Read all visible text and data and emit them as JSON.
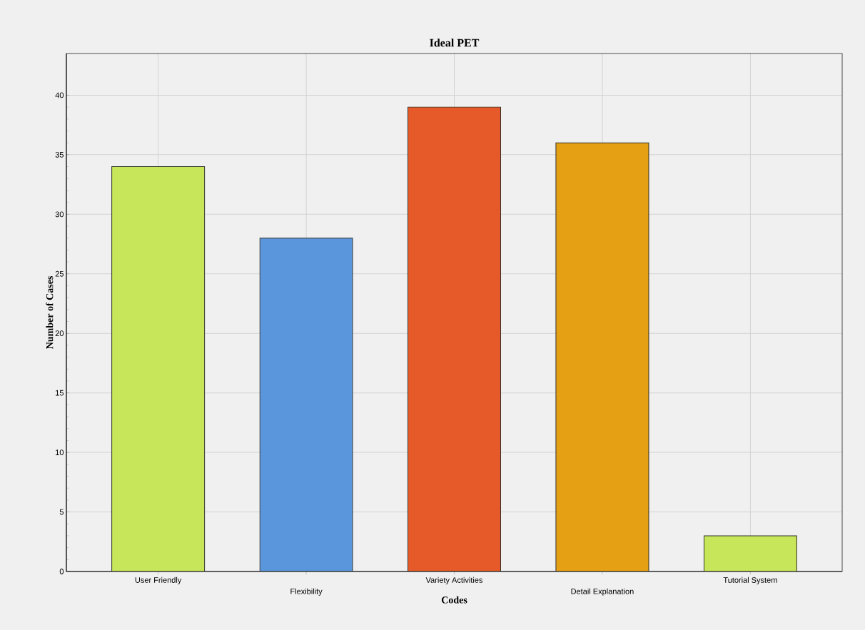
{
  "chart_data": {
    "type": "bar",
    "title": "Ideal PET",
    "xlabel": "Codes",
    "ylabel": "Number of Cases",
    "categories": [
      "User Friendly",
      "Flexibility",
      "Variety Activities",
      "Detail Explanation",
      "Tutorial System"
    ],
    "values": [
      34,
      28,
      39,
      36,
      3
    ],
    "colors": [
      "#c8e65a",
      "#5a96dc",
      "#e55a28",
      "#e6a014",
      "#c8e65a"
    ],
    "ylim": [
      0,
      43.5
    ],
    "yticks": [
      0,
      5,
      10,
      15,
      20,
      25,
      30,
      35,
      40
    ],
    "grid": true
  }
}
